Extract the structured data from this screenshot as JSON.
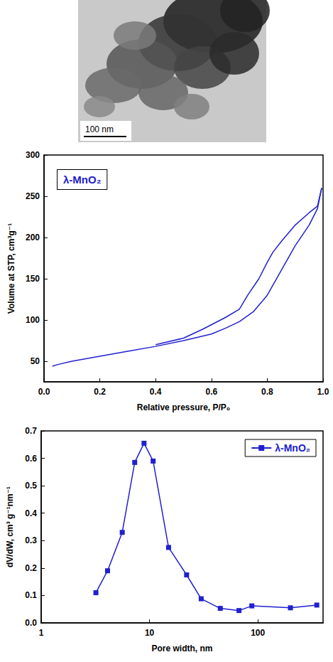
{
  "micrograph": {
    "scale_bar": "100 nm"
  },
  "chart_data": [
    {
      "type": "line",
      "annotation": "λ-MnO₂",
      "x_label": "Relative pressure, P/P₀",
      "y_label": "Volume at STP, cm³g⁻¹",
      "xlim": [
        0,
        1
      ],
      "xticks": [
        {
          "value": 0,
          "label": "0.0"
        },
        {
          "value": 0.2,
          "label": "0.2"
        },
        {
          "value": 0.4,
          "label": "0.4"
        },
        {
          "value": 0.6,
          "label": "0.6"
        },
        {
          "value": 0.8,
          "label": "0.8"
        },
        {
          "value": 1,
          "label": "1.0"
        }
      ],
      "ylim": [
        25,
        300
      ],
      "yticks": [
        50,
        100,
        150,
        200,
        250,
        300
      ],
      "grid": false,
      "marker": "none",
      "line_style": "solid",
      "series": [
        {
          "color": "#2020d0",
          "x": [
            0.03,
            0.05,
            0.1,
            0.2,
            0.3,
            0.4,
            0.5,
            0.6,
            0.65,
            0.7,
            0.75,
            0.8,
            0.85,
            0.9,
            0.95,
            0.98,
            0.995
          ],
          "values": [
            44,
            46,
            50,
            56,
            62,
            68,
            75,
            83,
            90,
            98,
            110,
            130,
            160,
            190,
            215,
            235,
            260
          ]
        },
        {
          "color": "#2020d0",
          "x": [
            0.995,
            0.98,
            0.95,
            0.9,
            0.85,
            0.82,
            0.8,
            0.77,
            0.73,
            0.7,
            0.65,
            0.57,
            0.5,
            0.4
          ],
          "values": [
            260,
            238,
            230,
            215,
            195,
            182,
            170,
            150,
            130,
            113,
            103,
            89,
            78,
            70
          ]
        }
      ]
    },
    {
      "type": "line",
      "x_label": "Pore width, nm",
      "y_label": "dV/dW, cm³ g⁻¹nm⁻¹",
      "log": "x",
      "xlim": [
        1,
        400
      ],
      "xticks": [
        1,
        10,
        100
      ],
      "ylim": [
        0,
        0.7
      ],
      "yticks": [
        {
          "value": 0,
          "label": "0.0"
        },
        {
          "value": 0.1,
          "label": "0.1"
        },
        {
          "value": 0.2,
          "label": "0.2"
        },
        {
          "value": 0.3,
          "label": "0.3"
        },
        {
          "value": 0.4,
          "label": "0.4"
        },
        {
          "value": 0.5,
          "label": "0.5"
        },
        {
          "value": 0.6,
          "label": "0.6"
        },
        {
          "value": 0.7,
          "label": "0.7"
        }
      ],
      "grid": false,
      "legend": "upper right",
      "series": [
        {
          "name": "λ-MnO₂",
          "color": "#2020d0",
          "marker": "square",
          "line_style": "solid",
          "x": [
            3.2,
            4.1,
            5.6,
            7.3,
            8.9,
            10.8,
            15,
            22,
            30,
            45,
            67,
            88,
            200,
            350
          ],
          "values": [
            0.11,
            0.19,
            0.33,
            0.585,
            0.655,
            0.59,
            0.275,
            0.175,
            0.088,
            0.053,
            0.045,
            0.062,
            0.055,
            0.065
          ]
        }
      ]
    }
  ]
}
